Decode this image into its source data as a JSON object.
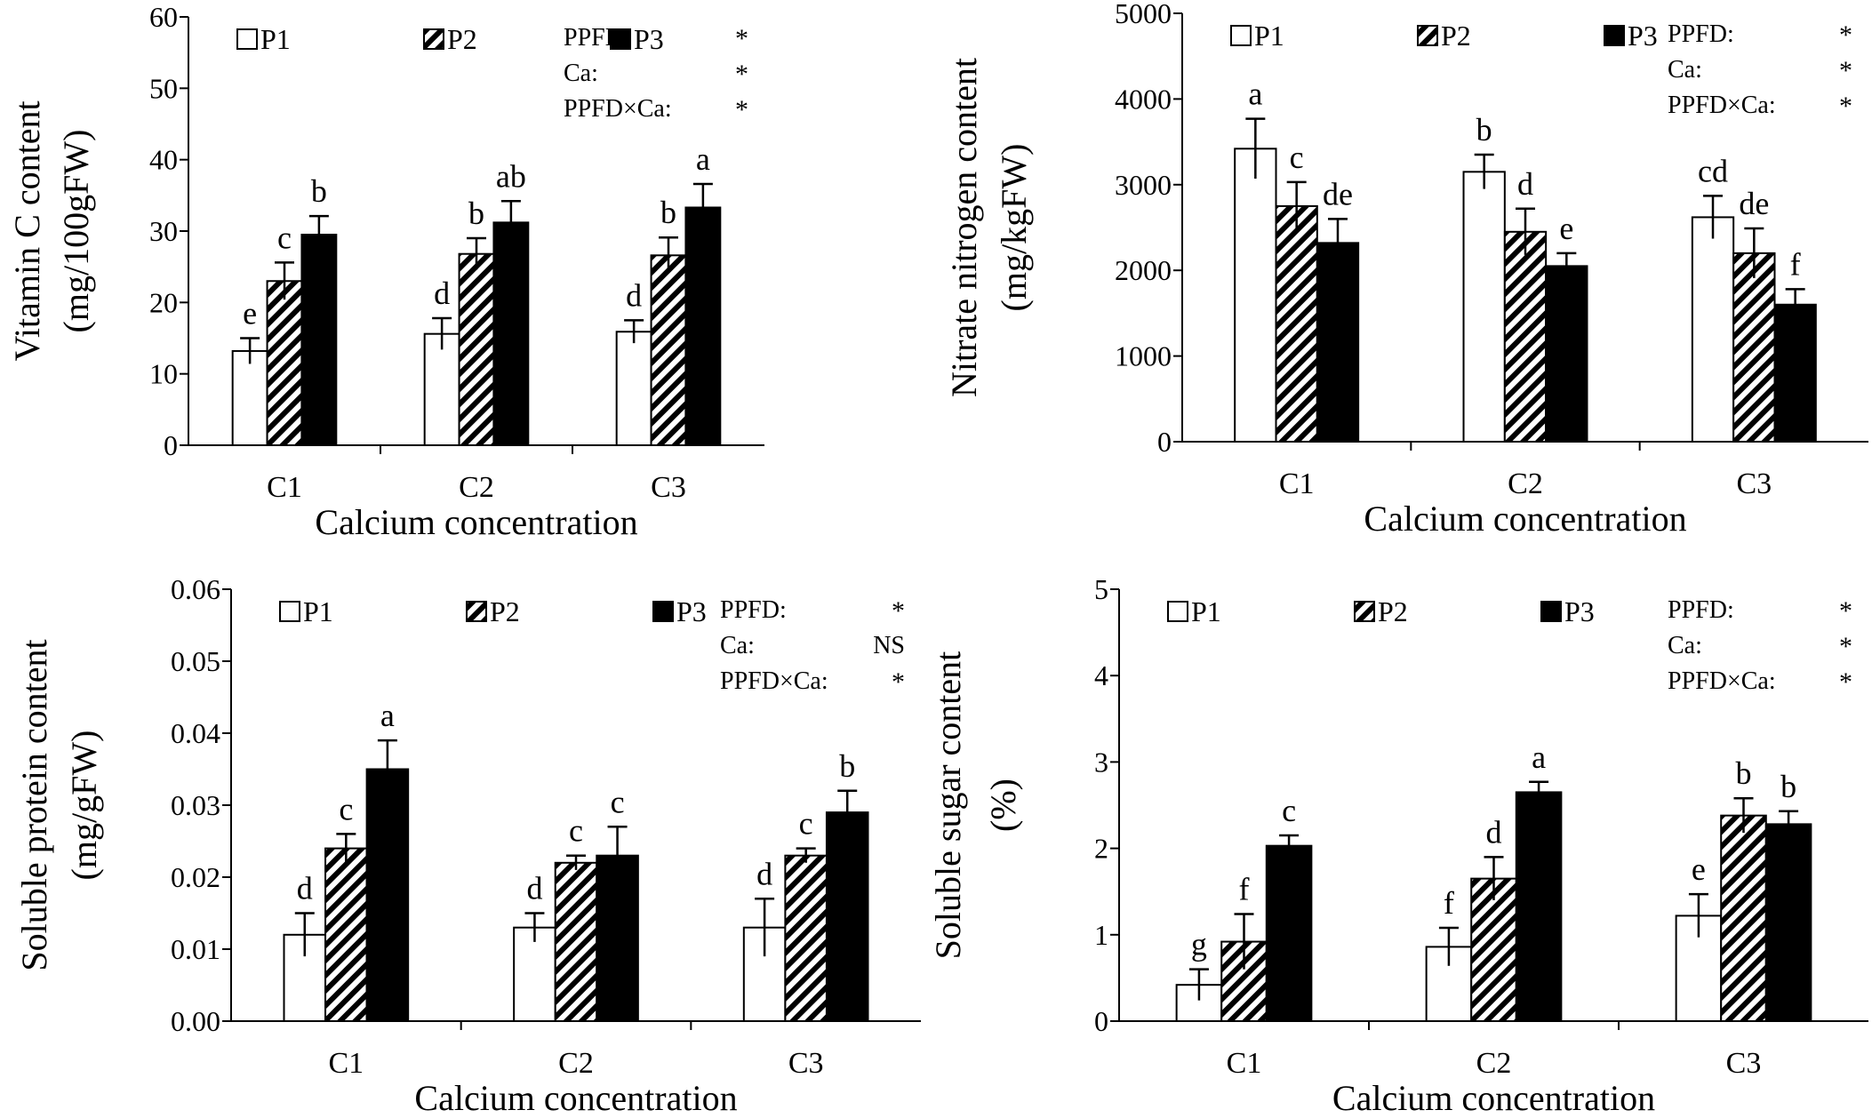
{
  "chart_data": [
    {
      "type": "bar",
      "categories": [
        "C1",
        "C2",
        "C3"
      ],
      "series": [
        {
          "name": "P1",
          "values": [
            13.2,
            15.6,
            15.9
          ],
          "errors": [
            1.8,
            2.2,
            1.6
          ]
        },
        {
          "name": "P2",
          "values": [
            23.0,
            26.8,
            26.6
          ],
          "errors": [
            2.6,
            2.2,
            2.5
          ]
        },
        {
          "name": "P3",
          "values": [
            29.5,
            31.2,
            33.3
          ],
          "errors": [
            2.6,
            3.0,
            3.3
          ]
        }
      ],
      "letters": [
        [
          "e",
          "d",
          "d"
        ],
        [
          "c",
          "b",
          "b"
        ],
        [
          "b",
          "ab",
          "a"
        ]
      ],
      "ylabel_lines": [
        "Vitamin C content",
        "(mg/100gFW)"
      ],
      "xlabel": "Calcium concentration",
      "ylim": [
        0,
        60
      ],
      "yticks": [
        "0",
        "10",
        "20",
        "30",
        "40",
        "50",
        "60"
      ],
      "legend_position": "top-left",
      "grid": false,
      "significance": [
        {
          "label": "PPFD:",
          "value": "*"
        },
        {
          "label": "Ca:",
          "value": "*"
        },
        {
          "label": "PPFD×Ca:",
          "value": "*"
        }
      ]
    },
    {
      "type": "bar",
      "categories": [
        "C1",
        "C2",
        "C3"
      ],
      "series": [
        {
          "name": "P1",
          "values": [
            3420,
            3150,
            2620
          ],
          "errors": [
            350,
            200,
            250
          ]
        },
        {
          "name": "P2",
          "values": [
            2750,
            2450,
            2200
          ],
          "errors": [
            280,
            270,
            290
          ]
        },
        {
          "name": "P3",
          "values": [
            2320,
            2050,
            1600
          ],
          "errors": [
            280,
            150,
            180
          ]
        }
      ],
      "letters": [
        [
          "a",
          "b",
          "cd"
        ],
        [
          "c",
          "d",
          "de"
        ],
        [
          "de",
          "e",
          "f"
        ]
      ],
      "ylabel_lines": [
        "Nitrate nitrogen content",
        "(mg/kgFW)"
      ],
      "xlabel": "Calcium concentration",
      "ylim": [
        0,
        5000
      ],
      "yticks": [
        "0",
        "1000",
        "2000",
        "3000",
        "4000",
        "5000"
      ],
      "legend_position": "top-left",
      "grid": false,
      "significance": [
        {
          "label": "PPFD:",
          "value": "*"
        },
        {
          "label": "Ca:",
          "value": "*"
        },
        {
          "label": "PPFD×Ca:",
          "value": "*"
        }
      ]
    },
    {
      "type": "bar",
      "categories": [
        "C1",
        "C2",
        "C3"
      ],
      "series": [
        {
          "name": "P1",
          "values": [
            0.012,
            0.013,
            0.013
          ],
          "errors": [
            0.003,
            0.002,
            0.004
          ]
        },
        {
          "name": "P2",
          "values": [
            0.024,
            0.022,
            0.023
          ],
          "errors": [
            0.002,
            0.001,
            0.001
          ]
        },
        {
          "name": "P3",
          "values": [
            0.035,
            0.023,
            0.029
          ],
          "errors": [
            0.004,
            0.004,
            0.003
          ]
        }
      ],
      "letters": [
        [
          "d",
          "d",
          "d"
        ],
        [
          "c",
          "c",
          "c"
        ],
        [
          "a",
          "c",
          "b"
        ]
      ],
      "ylabel_lines": [
        "Soluble protein content",
        "(mg/gFW)"
      ],
      "xlabel": "Calcium concentration",
      "ylim": [
        0,
        0.06
      ],
      "yticks": [
        "0.00",
        "0.01",
        "0.02",
        "0.03",
        "0.04",
        "0.05",
        "0.06"
      ],
      "legend_position": "top-left",
      "grid": false,
      "significance": [
        {
          "label": "PPFD:",
          "value": "*"
        },
        {
          "label": "Ca:",
          "value": "NS"
        },
        {
          "label": "PPFD×Ca:",
          "value": "*"
        }
      ]
    },
    {
      "type": "bar",
      "categories": [
        "C1",
        "C2",
        "C3"
      ],
      "series": [
        {
          "name": "P1",
          "values": [
            0.42,
            0.86,
            1.22
          ],
          "errors": [
            0.18,
            0.22,
            0.25
          ]
        },
        {
          "name": "P2",
          "values": [
            0.92,
            1.65,
            2.38
          ],
          "errors": [
            0.32,
            0.25,
            0.2
          ]
        },
        {
          "name": "P3",
          "values": [
            2.03,
            2.65,
            2.28
          ],
          "errors": [
            0.12,
            0.12,
            0.15
          ]
        }
      ],
      "letters": [
        [
          "g",
          "f",
          "e"
        ],
        [
          "f",
          "d",
          "b"
        ],
        [
          "c",
          "a",
          "b"
        ]
      ],
      "ylabel_lines": [
        "Soluble sugar content",
        "(%)"
      ],
      "xlabel": "Calcium concentration",
      "ylim": [
        0,
        5
      ],
      "yticks": [
        "0",
        "1",
        "2",
        "3",
        "4",
        "5"
      ],
      "legend_position": "top-left",
      "grid": false,
      "significance": [
        {
          "label": "PPFD:",
          "value": "*"
        },
        {
          "label": "Ca:",
          "value": "*"
        },
        {
          "label": "PPFD×Ca:",
          "value": "*"
        }
      ]
    }
  ],
  "colors": {
    "P1": "#ffffff",
    "P2": "hatched",
    "P3": "#000000",
    "axis": "#000000"
  }
}
